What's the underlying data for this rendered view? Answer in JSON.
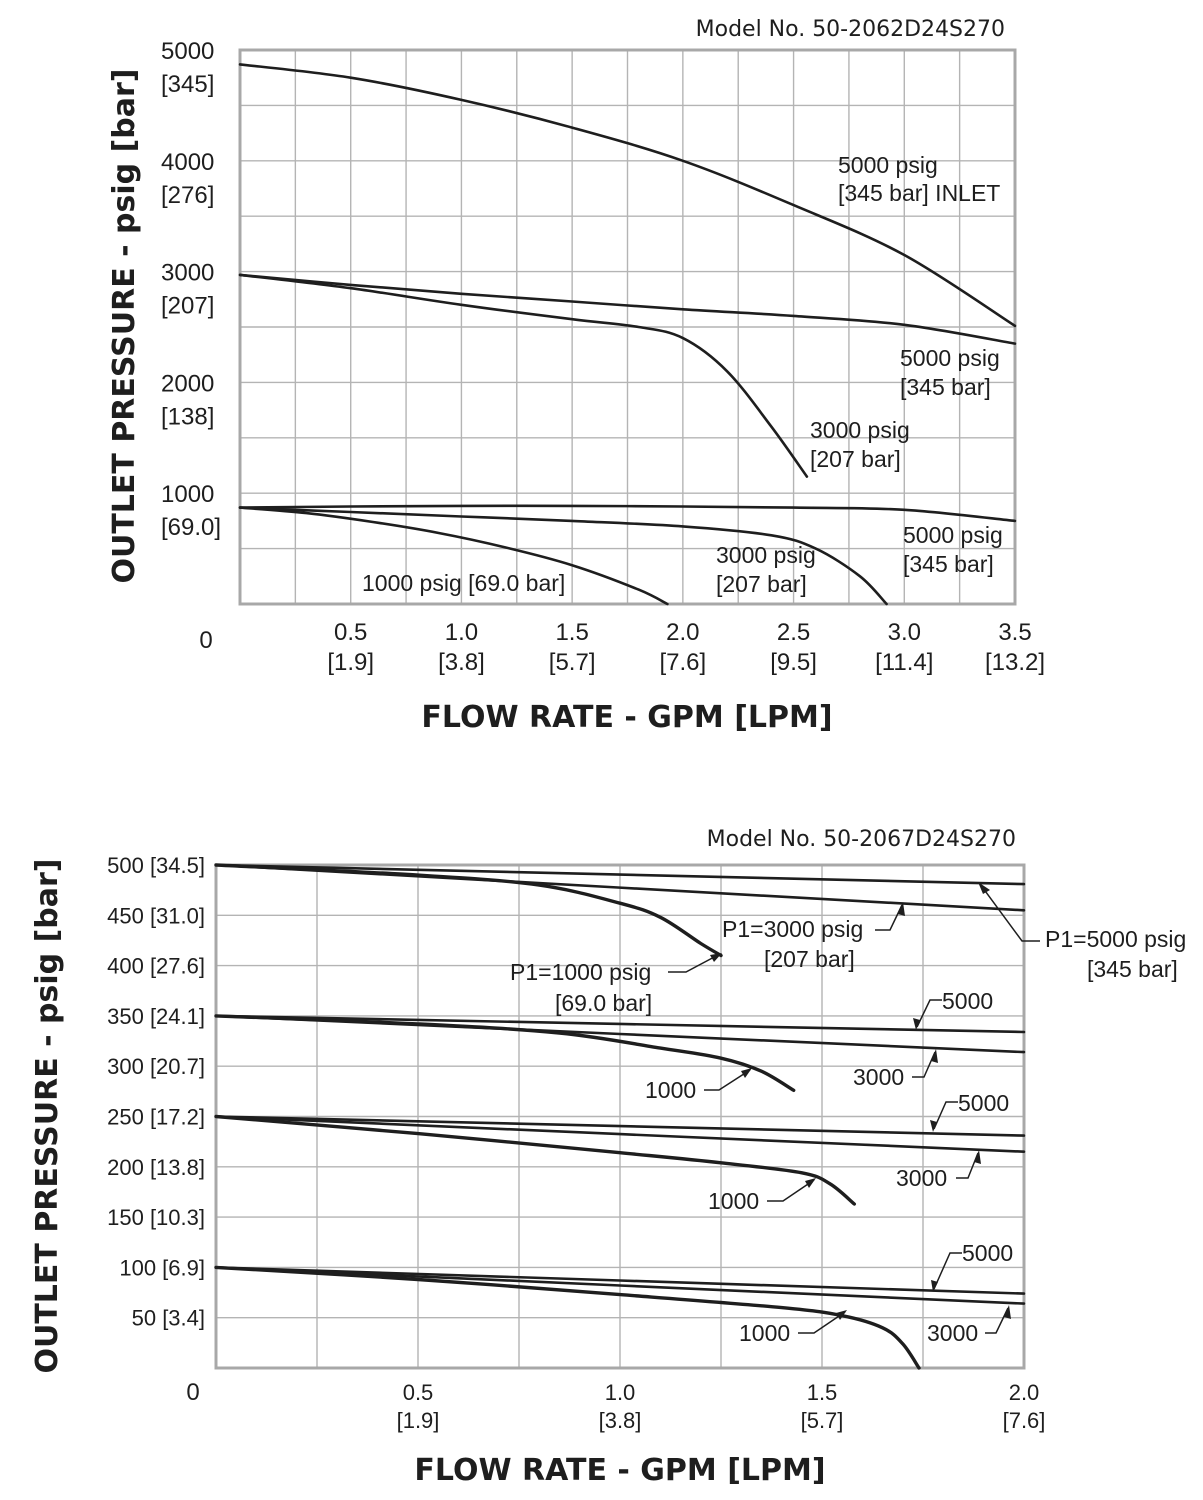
{
  "chart_data": [
    {
      "type": "line",
      "title": "Model No. 50-2062D24S270",
      "xlabel": "FLOW RATE - GPM [LPM]",
      "ylabel": "OUTLET PRESSURE - psig [bar]",
      "xlim": [
        0,
        3.5
      ],
      "ylim": [
        0,
        5000
      ],
      "origin_label": "0",
      "x_ticks": [
        {
          "value": 0.5,
          "label": "0.5",
          "sub": "[1.9]"
        },
        {
          "value": 1.0,
          "label": "1.0",
          "sub": "[3.8]"
        },
        {
          "value": 1.5,
          "label": "1.5",
          "sub": "[5.7]"
        },
        {
          "value": 2.0,
          "label": "2.0",
          "sub": "[7.6]"
        },
        {
          "value": 2.5,
          "label": "2.5",
          "sub": "[9.5]"
        },
        {
          "value": 3.0,
          "label": "3.0",
          "sub": "[11.4]"
        },
        {
          "value": 3.5,
          "label": "3.5",
          "sub": "[13.2]"
        }
      ],
      "y_ticks": [
        {
          "value": 1000,
          "label": "1000",
          "sub": "[69.0]"
        },
        {
          "value": 2000,
          "label": "2000",
          "sub": "[138]"
        },
        {
          "value": 3000,
          "label": "3000",
          "sub": "[207]"
        },
        {
          "value": 4000,
          "label": "4000",
          "sub": "[276]"
        },
        {
          "value": 5000,
          "label": "5000",
          "sub": "[345]"
        }
      ],
      "series": [
        {
          "name": "5000 psig [345 bar] INLET",
          "x": [
            0,
            0.5,
            1.0,
            1.5,
            2.0,
            2.5,
            3.0,
            3.5
          ],
          "y": [
            4870,
            4750,
            4550,
            4300,
            4000,
            3600,
            3150,
            2510
          ]
        },
        {
          "name": "5000 psig [345 bar]",
          "x": [
            0,
            0.5,
            1.0,
            1.5,
            2.0,
            2.5,
            3.0,
            3.5
          ],
          "y": [
            2970,
            2880,
            2800,
            2730,
            2660,
            2600,
            2520,
            2350
          ]
        },
        {
          "name": "3000 psig [207 bar]",
          "x": [
            0,
            0.5,
            1.0,
            1.5,
            1.8,
            2.0,
            2.2,
            2.4,
            2.56
          ],
          "y": [
            2970,
            2850,
            2700,
            2570,
            2500,
            2400,
            2100,
            1600,
            1150
          ]
        },
        {
          "name": "5000 psig [345 bar]",
          "x": [
            0,
            0.5,
            1.0,
            1.5,
            2.0,
            2.5,
            3.0,
            3.5
          ],
          "y": [
            870,
            880,
            885,
            885,
            880,
            870,
            850,
            750
          ]
        },
        {
          "name": "3000 psig [207 bar]",
          "x": [
            0,
            0.5,
            1.0,
            1.5,
            2.0,
            2.4,
            2.6,
            2.8,
            2.92
          ],
          "y": [
            870,
            830,
            790,
            750,
            700,
            620,
            500,
            250,
            0
          ]
        },
        {
          "name": "1000 psig [69.0 bar]",
          "x": [
            0,
            0.3,
            0.6,
            0.9,
            1.2,
            1.5,
            1.8,
            1.93
          ],
          "y": [
            870,
            820,
            740,
            640,
            510,
            350,
            130,
            0
          ]
        }
      ],
      "annotations": [
        {
          "lines": [
            "5000 psig",
            "[345 bar] INLET"
          ]
        },
        {
          "lines": [
            "5000 psig",
            "[345 bar]"
          ]
        },
        {
          "lines": [
            "3000 psig",
            "[207 bar]"
          ]
        },
        {
          "lines": [
            "5000 psig",
            "[345 bar]"
          ]
        },
        {
          "lines": [
            "3000 psig",
            "[207 bar]"
          ]
        },
        {
          "lines": [
            "1000 psig [69.0 bar]"
          ]
        }
      ]
    },
    {
      "type": "line",
      "title": "Model No. 50-2067D24S270",
      "xlabel": "FLOW RATE - GPM [LPM]",
      "ylabel": "OUTLET PRESSURE - psig [bar]",
      "xlim": [
        0,
        2.0
      ],
      "ylim": [
        0,
        500
      ],
      "origin_label": "0",
      "x_ticks": [
        {
          "value": 0.5,
          "label": "0.5",
          "sub": "[1.9]"
        },
        {
          "value": 1.0,
          "label": "1.0",
          "sub": "[3.8]"
        },
        {
          "value": 1.5,
          "label": "1.5",
          "sub": "[5.7]"
        },
        {
          "value": 2.0,
          "label": "2.0",
          "sub": "[7.6]"
        }
      ],
      "y_ticks": [
        {
          "value": 50,
          "label": "50 [3.4]"
        },
        {
          "value": 100,
          "label": "100 [6.9]"
        },
        {
          "value": 150,
          "label": "150 [10.3]"
        },
        {
          "value": 200,
          "label": "200 [13.8]"
        },
        {
          "value": 250,
          "label": "250 [17.2]"
        },
        {
          "value": 300,
          "label": "300 [20.7]"
        },
        {
          "value": 350,
          "label": "350 [24.1]"
        },
        {
          "value": 400,
          "label": "400 [27.6]"
        },
        {
          "value": 450,
          "label": "450 [31.0]"
        },
        {
          "value": 500,
          "label": "500 [34.5]"
        }
      ],
      "series": [
        {
          "name": "P1=5000 psig @ 500",
          "x": [
            0,
            2.0
          ],
          "y": [
            500,
            481
          ]
        },
        {
          "name": "P1=3000 psig @ 500",
          "x": [
            0,
            2.0
          ],
          "y": [
            500,
            455
          ]
        },
        {
          "name": "P1=1000 psig @ 500",
          "x": [
            0,
            0.5,
            0.8,
            1.0,
            1.1,
            1.2,
            1.25
          ],
          "y": [
            500,
            490,
            480,
            462,
            448,
            422,
            410
          ]
        },
        {
          "name": "5000 @ 350",
          "x": [
            0,
            2.0
          ],
          "y": [
            350,
            334
          ]
        },
        {
          "name": "3000 @ 350",
          "x": [
            0,
            2.0
          ],
          "y": [
            350,
            314
          ]
        },
        {
          "name": "1000 @ 350",
          "x": [
            0,
            0.5,
            0.85,
            1.1,
            1.25,
            1.35,
            1.43
          ],
          "y": [
            350,
            342,
            333,
            318,
            308,
            295,
            276
          ]
        },
        {
          "name": "5000 @ 250",
          "x": [
            0,
            2.0
          ],
          "y": [
            250,
            231
          ]
        },
        {
          "name": "3000 @ 250",
          "x": [
            0,
            2.0
          ],
          "y": [
            250,
            215
          ]
        },
        {
          "name": "1000 @ 250",
          "x": [
            0,
            0.5,
            1.0,
            1.25,
            1.45,
            1.52,
            1.58
          ],
          "y": [
            250,
            233,
            214,
            204,
            194,
            183,
            163
          ]
        },
        {
          "name": "5000 @ 100",
          "x": [
            0,
            2.0
          ],
          "y": [
            100,
            74
          ]
        },
        {
          "name": "3000 @ 100",
          "x": [
            0,
            2.0
          ],
          "y": [
            100,
            64
          ]
        },
        {
          "name": "1000 @ 100",
          "x": [
            0,
            0.5,
            1.0,
            1.4,
            1.55,
            1.65,
            1.7,
            1.74
          ],
          "y": [
            100,
            88,
            73,
            60,
            52,
            40,
            24,
            0
          ]
        }
      ],
      "annotations": [
        {
          "lines": [
            "P1=5000 psig",
            "[345 bar]"
          ]
        },
        {
          "lines": [
            "P1=3000 psig",
            "[207 bar]"
          ]
        },
        {
          "lines": [
            "P1=1000 psig",
            "[69.0 bar]"
          ]
        },
        {
          "lines": [
            "5000"
          ]
        },
        {
          "lines": [
            "3000"
          ]
        },
        {
          "lines": [
            "1000"
          ]
        },
        {
          "lines": [
            "5000"
          ]
        },
        {
          "lines": [
            "3000"
          ]
        },
        {
          "lines": [
            "1000"
          ]
        },
        {
          "lines": [
            "5000"
          ]
        },
        {
          "lines": [
            "3000"
          ]
        },
        {
          "lines": [
            "1000"
          ]
        }
      ]
    }
  ]
}
